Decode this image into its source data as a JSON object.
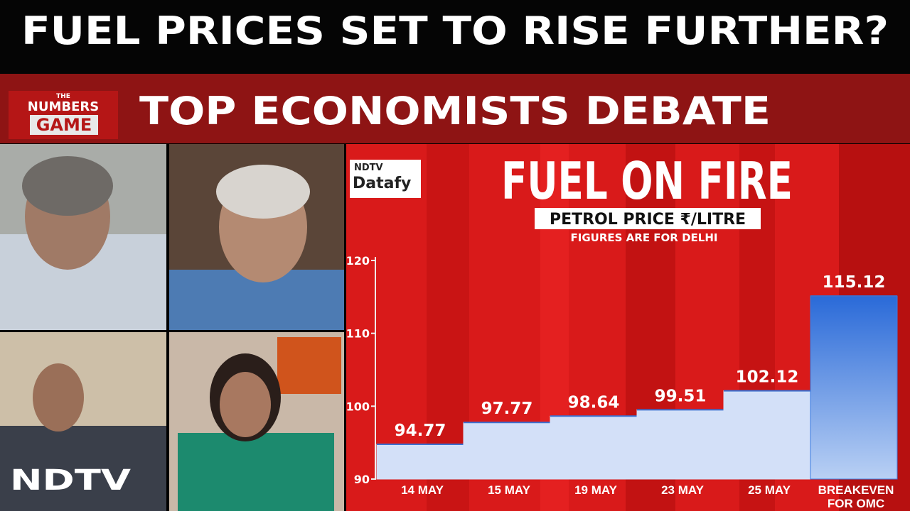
{
  "headline": "FUEL PRICES SET TO RISE FURTHER?",
  "subheadline": "TOP ECONOMISTS DEBATE",
  "show_logo": {
    "line1": "THE",
    "line2": "NUMBERS",
    "line3": "GAME"
  },
  "channel_logo": "NDTV",
  "chart_data": {
    "type": "bar",
    "brand": {
      "line1": "NDTV",
      "line2": "Datafy"
    },
    "title": "FUEL ON FIRE",
    "subtitle": "PETROL PRICE ₹/LITRE",
    "note": "FIGURES ARE FOR DELHI",
    "categories": [
      "14 MAY",
      "15 MAY",
      "19 MAY",
      "23 MAY",
      "25 MAY",
      "BREAKEVEN FOR OMC LOSSES"
    ],
    "values": [
      94.77,
      97.77,
      98.64,
      99.51,
      102.12,
      115.12
    ],
    "colors": [
      "#d3e0f8",
      "#d3e0f8",
      "#d3e0f8",
      "#d3e0f8",
      "#d3e0f8",
      "#3b7be0"
    ],
    "ylim": [
      90,
      120
    ],
    "yticks": [
      90,
      100,
      110,
      120
    ]
  }
}
